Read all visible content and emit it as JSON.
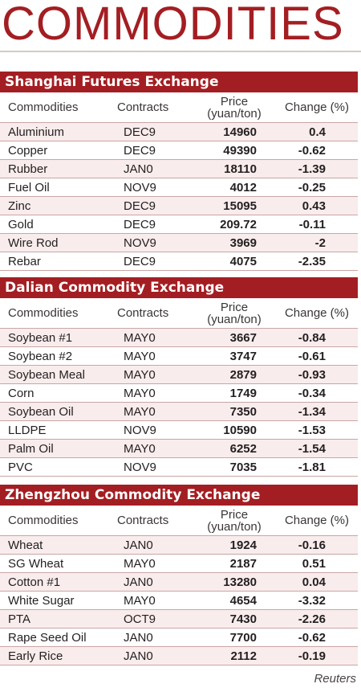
{
  "title": "COMMODITIES",
  "columns": {
    "commodities": "Commodities",
    "contracts": "Contracts",
    "price_line1": "Price",
    "price_line2": "(yuan/ton)",
    "change": "Change (%)"
  },
  "sections": [
    {
      "name": "Shanghai Futures Exchange",
      "rows": [
        {
          "commodity": "Aluminium",
          "contract": "DEC9",
          "price": "14960",
          "change": "0.4"
        },
        {
          "commodity": "Copper",
          "contract": "DEC9",
          "price": "49390",
          "change": "-0.62"
        },
        {
          "commodity": "Rubber",
          "contract": "JAN0",
          "price": "18110",
          "change": "-1.39"
        },
        {
          "commodity": "Fuel Oil",
          "contract": "NOV9",
          "price": "4012",
          "change": "-0.25"
        },
        {
          "commodity": "Zinc",
          "contract": "DEC9",
          "price": "15095",
          "change": "0.43"
        },
        {
          "commodity": "Gold",
          "contract": "DEC9",
          "price": "209.72",
          "change": "-0.11"
        },
        {
          "commodity": "Wire Rod",
          "contract": "NOV9",
          "price": "3969",
          "change": "-2"
        },
        {
          "commodity": "Rebar",
          "contract": "DEC9",
          "price": "4075",
          "change": "-2.35"
        }
      ]
    },
    {
      "name": "Dalian Commodity Exchange",
      "rows": [
        {
          "commodity": "Soybean #1",
          "contract": "MAY0",
          "price": "3667",
          "change": "-0.84"
        },
        {
          "commodity": "Soybean #2",
          "contract": "MAY0",
          "price": "3747",
          "change": "-0.61"
        },
        {
          "commodity": "Soybean Meal",
          "contract": "MAY0",
          "price": "2879",
          "change": "-0.93"
        },
        {
          "commodity": "Corn",
          "contract": "MAY0",
          "price": "1749",
          "change": "-0.34"
        },
        {
          "commodity": "Soybean Oil",
          "contract": "MAY0",
          "price": "7350",
          "change": "-1.34"
        },
        {
          "commodity": "LLDPE",
          "contract": "NOV9",
          "price": "10590",
          "change": "-1.53"
        },
        {
          "commodity": "Palm Oil",
          "contract": "MAY0",
          "price": "6252",
          "change": "-1.54"
        },
        {
          "commodity": "PVC",
          "contract": "NOV9",
          "price": "7035",
          "change": "-1.81"
        }
      ]
    },
    {
      "name": "Zhengzhou Commodity Exchange",
      "rows": [
        {
          "commodity": "Wheat",
          "contract": "JAN0",
          "price": "1924",
          "change": "-0.16"
        },
        {
          "commodity": "SG Wheat",
          "contract": "MAY0",
          "price": "2187",
          "change": "0.51"
        },
        {
          "commodity": "Cotton #1",
          "contract": "JAN0",
          "price": "13280",
          "change": "0.04"
        },
        {
          "commodity": "White Sugar",
          "contract": "MAY0",
          "price": "4654",
          "change": "-3.32"
        },
        {
          "commodity": "PTA",
          "contract": "OCT9",
          "price": "7430",
          "change": "-2.26"
        },
        {
          "commodity": "Rape Seed Oil",
          "contract": "JAN0",
          "price": "7700",
          "change": "-0.62"
        },
        {
          "commodity": "Early Rice",
          "contract": "JAN0",
          "price": "2112",
          "change": "-0.19"
        }
      ]
    }
  ],
  "source": "Reuters"
}
